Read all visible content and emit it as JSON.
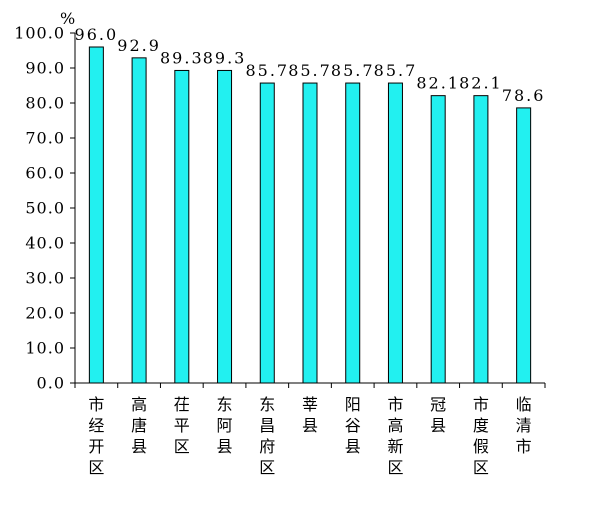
{
  "chart_data": {
    "type": "bar",
    "unit": "%",
    "categories": [
      "市经开区",
      "高唐县",
      "茌平区",
      "东阿县",
      "东昌府区",
      "莘县",
      "阳谷县",
      "市高新区",
      "冠县",
      "市度假区",
      "临清市"
    ],
    "values": [
      96.0,
      92.9,
      89.3,
      89.3,
      85.7,
      85.7,
      85.7,
      85.7,
      82.1,
      82.1,
      78.6
    ],
    "value_labels": [
      "96.0",
      "92.9",
      "89.3",
      "89.3",
      "85.7",
      "85.7",
      "85.7",
      "85.7",
      "82.1",
      "82.1",
      "78.6"
    ],
    "ylim": [
      0,
      100
    ],
    "yticks": [
      "0.0",
      "10.0",
      "20.0",
      "30.0",
      "40.0",
      "50.0",
      "60.0",
      "70.0",
      "80.0",
      "90.0",
      "100.0"
    ],
    "bar_color": "#22f0f0",
    "grid": false,
    "legend": "none"
  }
}
